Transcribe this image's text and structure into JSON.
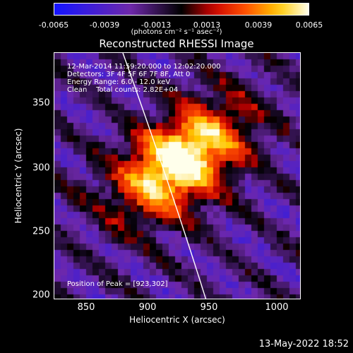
{
  "colorbar": {
    "ticks": [
      "-0.0065",
      "-0.0039",
      "-0.0013",
      "0.0013",
      "0.0039",
      "0.0065"
    ],
    "units": "(photons cm⁻² s⁻¹ asec⁻²)"
  },
  "title": "Reconstructed RHESSI Image",
  "annotations": {
    "time_range": "12-Mar-2014 11:59:20.000 to 12:02:20.000",
    "detectors": "Detectors: 3F 4F 5F 6F 7F 8F, Att 0",
    "energy": "Energy Range: 6.0 - 12.0 keV",
    "clean": "Clean    Total counts: 2.82E+04",
    "peak": "Position of Peak = [923,302]"
  },
  "axes": {
    "xlabel": "Heliocentric X (arcsec)",
    "ylabel": "Heliocentric Y (arcsec)",
    "xticks": [
      "850",
      "900",
      "950",
      "1000"
    ],
    "yticks": [
      "200",
      "250",
      "300",
      "350"
    ]
  },
  "chart_data": {
    "type": "heatmap",
    "title": "Reconstructed RHESSI Image",
    "xlabel": "Heliocentric X (arcsec)",
    "ylabel": "Heliocentric Y (arcsec)",
    "xlim": [
      826,
      1016
    ],
    "ylim": [
      195,
      385
    ],
    "peak": [
      923,
      302
    ],
    "color_range": [
      -0.0065,
      0.0065
    ]
  },
  "footer": "13-May-2022 18:52"
}
